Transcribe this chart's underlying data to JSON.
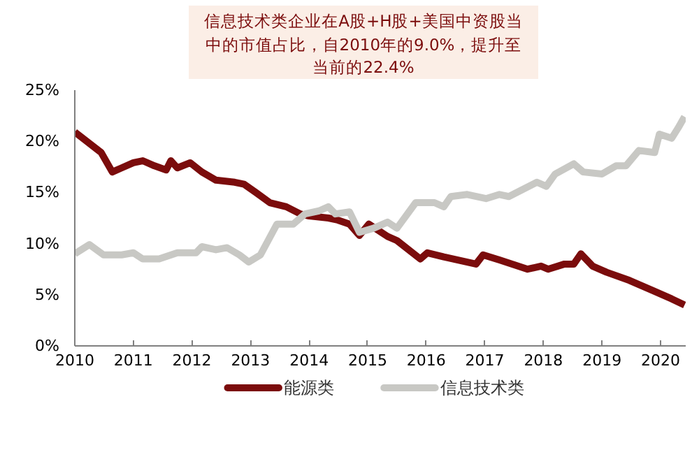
{
  "chart_data": {
    "type": "line",
    "xlim": [
      2010,
      2020.43
    ],
    "xticks": [
      2010,
      2011,
      2012,
      2013,
      2014,
      2015,
      2016,
      2017,
      2018,
      2019,
      2020
    ],
    "ylim": [
      0,
      25
    ],
    "yticks": [
      {
        "value": 0,
        "label": "0%"
      },
      {
        "value": 5,
        "label": "5%"
      },
      {
        "value": 10,
        "label": "10%"
      },
      {
        "value": 15,
        "label": "15%"
      },
      {
        "value": 20,
        "label": "20%"
      },
      {
        "value": 25,
        "label": "25%"
      }
    ],
    "annotations": [
      "信息技术类企业在A股+H股+美国中资股当中的市值占比，自2010年的9.0%，提升至当前的22.4%"
    ],
    "grid": false,
    "legend": "bottom",
    "marker": "none",
    "line_style": "solid",
    "series": [
      {
        "name": "能源类",
        "color": "#7b0c0c",
        "x": [
          2010,
          2010.45,
          2010.64,
          2010.8,
          2011.0,
          2011.16,
          2011.36,
          2011.56,
          2011.64,
          2011.75,
          2011.97,
          2012.17,
          2012.41,
          2012.73,
          2012.89,
          2013.09,
          2013.33,
          2013.61,
          2013.85,
          2014.0,
          2014.33,
          2014.49,
          2014.69,
          2014.86,
          2015.02,
          2015.34,
          2015.5,
          2015.9,
          2016.02,
          2016.3,
          2016.85,
          2016.97,
          2017.25,
          2017.73,
          2017.96,
          2018.08,
          2018.36,
          2018.52,
          2018.64,
          2018.84,
          2019.08,
          2019.47,
          2019.87,
          2020.19,
          2020.41
        ],
        "values": [
          20.9,
          18.9,
          17.0,
          17.4,
          17.9,
          18.1,
          17.6,
          17.2,
          18.1,
          17.4,
          17.9,
          17.0,
          16.2,
          16.0,
          15.8,
          15.0,
          14.0,
          13.6,
          12.9,
          12.7,
          12.5,
          12.3,
          11.9,
          10.8,
          11.9,
          10.7,
          10.3,
          8.5,
          9.1,
          8.7,
          8.0,
          8.9,
          8.4,
          7.5,
          7.8,
          7.5,
          8.0,
          8.0,
          9.0,
          7.8,
          7.2,
          6.4,
          5.4,
          4.6,
          4.0
        ]
      },
      {
        "name": "信息技术类",
        "color": "#c8c8c4",
        "x": [
          2010,
          2010.25,
          2010.49,
          2010.8,
          2011.0,
          2011.16,
          2011.44,
          2011.75,
          2012.07,
          2012.17,
          2012.41,
          2012.6,
          2012.81,
          2012.97,
          2013.17,
          2013.45,
          2013.73,
          2013.93,
          2014.17,
          2014.33,
          2014.45,
          2014.69,
          2014.86,
          2015.1,
          2015.34,
          2015.5,
          2015.82,
          2016.14,
          2016.3,
          2016.42,
          2016.7,
          2017.02,
          2017.25,
          2017.41,
          2017.89,
          2018.05,
          2018.2,
          2018.52,
          2018.68,
          2019.0,
          2019.24,
          2019.41,
          2019.63,
          2019.9,
          2019.98,
          2020.19,
          2020.3,
          2020.41
        ],
        "values": [
          9.0,
          9.9,
          8.9,
          8.9,
          9.1,
          8.5,
          8.5,
          9.1,
          9.1,
          9.7,
          9.4,
          9.6,
          8.9,
          8.2,
          8.9,
          11.9,
          11.9,
          12.9,
          13.2,
          13.6,
          12.9,
          13.1,
          11.1,
          11.5,
          12.1,
          11.5,
          14.0,
          14.0,
          13.6,
          14.6,
          14.8,
          14.4,
          14.8,
          14.6,
          16.0,
          15.6,
          16.8,
          17.8,
          17.0,
          16.8,
          17.6,
          17.6,
          19.1,
          18.9,
          20.7,
          20.3,
          21.3,
          22.4
        ]
      }
    ]
  }
}
